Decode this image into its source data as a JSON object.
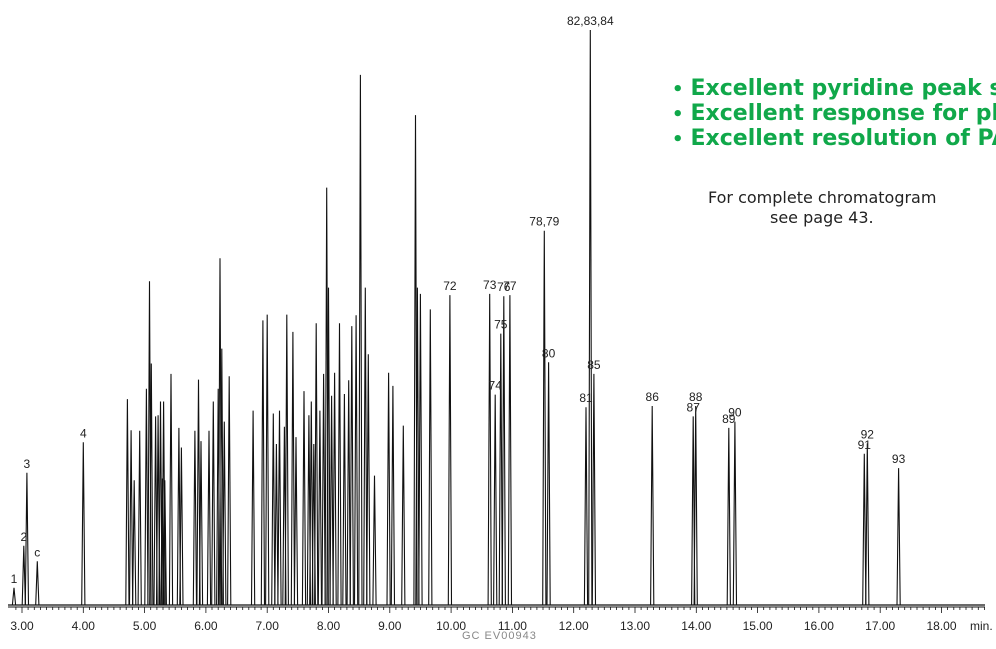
{
  "callouts": [
    "Excellent  pyridine peak shape",
    "Excellent response for phenols",
    "Excellent resolution of PAHs"
  ],
  "note": {
    "line1": "For complete chromatogram",
    "line2": "see page 43."
  },
  "figure_code": "GC  EV00943",
  "chart_data": {
    "type": "line",
    "xlabel": "min.",
    "xlim": [
      2.85,
      19.0
    ],
    "ylim": [
      0,
      100
    ],
    "x_ticks": [
      "3.00",
      "4.00",
      "5.00",
      "6.00",
      "7.00",
      "8.00",
      "9.00",
      "10.00",
      "11.00",
      "12.00",
      "13.00",
      "14.00",
      "15.00",
      "16.00",
      "17.00",
      "18.00"
    ],
    "labeled_peaks": [
      {
        "label": "1",
        "t": 2.87,
        "h": 3.0
      },
      {
        "label": "2",
        "t": 3.03,
        "h": 10.3
      },
      {
        "label": "3",
        "t": 3.08,
        "h": 23.0
      },
      {
        "label": "c",
        "t": 3.25,
        "h": 7.6
      },
      {
        "label": "4",
        "t": 4.0,
        "h": 28.3
      },
      {
        "label": "72",
        "t": 9.98,
        "h": 53.9
      },
      {
        "label": "73",
        "t": 10.63,
        "h": 54.1
      },
      {
        "label": "74",
        "t": 10.72,
        "h": 36.6
      },
      {
        "label": "75",
        "t": 10.81,
        "h": 47.2
      },
      {
        "label": "76",
        "t": 10.86,
        "h": 53.7
      },
      {
        "label": "77",
        "t": 10.96,
        "h": 53.9
      },
      {
        "label": "78,79",
        "t": 11.52,
        "h": 65.1
      },
      {
        "label": "80",
        "t": 11.59,
        "h": 42.2
      },
      {
        "label": "81",
        "t": 12.2,
        "h": 34.4
      },
      {
        "label": "82,83,84",
        "t": 12.27,
        "h": 100.0
      },
      {
        "label": "85",
        "t": 12.33,
        "h": 40.2
      },
      {
        "label": "86",
        "t": 13.28,
        "h": 34.6
      },
      {
        "label": "87",
        "t": 13.95,
        "h": 32.8
      },
      {
        "label": "88",
        "t": 13.99,
        "h": 34.6
      },
      {
        "label": "89",
        "t": 14.53,
        "h": 30.8
      },
      {
        "label": "90",
        "t": 14.63,
        "h": 31.9
      },
      {
        "label": "91",
        "t": 16.74,
        "h": 26.3
      },
      {
        "label": "92",
        "t": 16.79,
        "h": 28.1
      },
      {
        "label": "93",
        "t": 17.3,
        "h": 23.8
      }
    ],
    "unlabeled_peaks": [
      {
        "t": 4.72,
        "h": 35.8
      },
      {
        "t": 4.78,
        "h": 30.4
      },
      {
        "t": 4.83,
        "h": 21.7
      },
      {
        "t": 4.92,
        "h": 30.3
      },
      {
        "t": 5.03,
        "h": 37.6
      },
      {
        "t": 5.08,
        "h": 56.3
      },
      {
        "t": 5.11,
        "h": 42.0
      },
      {
        "t": 5.18,
        "h": 32.8
      },
      {
        "t": 5.22,
        "h": 33.0
      },
      {
        "t": 5.26,
        "h": 35.4
      },
      {
        "t": 5.29,
        "h": 22.0
      },
      {
        "t": 5.31,
        "h": 35.4
      },
      {
        "t": 5.33,
        "h": 21.7
      },
      {
        "t": 5.43,
        "h": 40.2
      },
      {
        "t": 5.56,
        "h": 30.8
      },
      {
        "t": 5.6,
        "h": 27.4
      },
      {
        "t": 5.82,
        "h": 30.3
      },
      {
        "t": 5.88,
        "h": 39.2
      },
      {
        "t": 5.92,
        "h": 28.5
      },
      {
        "t": 6.05,
        "h": 30.3
      },
      {
        "t": 6.12,
        "h": 35.4
      },
      {
        "t": 6.2,
        "h": 37.6
      },
      {
        "t": 6.23,
        "h": 60.3
      },
      {
        "t": 6.26,
        "h": 44.6
      },
      {
        "t": 6.3,
        "h": 31.9
      },
      {
        "t": 6.38,
        "h": 39.8
      },
      {
        "t": 6.77,
        "h": 33.8
      },
      {
        "t": 6.93,
        "h": 49.5
      },
      {
        "t": 7.0,
        "h": 50.5
      },
      {
        "t": 7.1,
        "h": 33.3
      },
      {
        "t": 7.15,
        "h": 28.0
      },
      {
        "t": 7.2,
        "h": 33.8
      },
      {
        "t": 7.28,
        "h": 31.0
      },
      {
        "t": 7.32,
        "h": 50.5
      },
      {
        "t": 7.42,
        "h": 47.5
      },
      {
        "t": 7.47,
        "h": 29.2
      },
      {
        "t": 7.6,
        "h": 37.2
      },
      {
        "t": 7.68,
        "h": 33.0
      },
      {
        "t": 7.72,
        "h": 35.4
      },
      {
        "t": 7.76,
        "h": 28.0
      },
      {
        "t": 7.8,
        "h": 49.0
      },
      {
        "t": 7.86,
        "h": 33.8
      },
      {
        "t": 7.92,
        "h": 40.2
      },
      {
        "t": 7.97,
        "h": 72.6
      },
      {
        "t": 8.0,
        "h": 55.2
      },
      {
        "t": 8.05,
        "h": 36.4
      },
      {
        "t": 8.1,
        "h": 40.4
      },
      {
        "t": 8.18,
        "h": 49.0
      },
      {
        "t": 8.26,
        "h": 36.7
      },
      {
        "t": 8.33,
        "h": 39.1
      },
      {
        "t": 8.38,
        "h": 48.5
      },
      {
        "t": 8.45,
        "h": 50.4
      },
      {
        "t": 8.52,
        "h": 92.2
      },
      {
        "t": 8.6,
        "h": 55.2
      },
      {
        "t": 8.65,
        "h": 43.6
      },
      {
        "t": 8.75,
        "h": 22.5
      },
      {
        "t": 8.98,
        "h": 40.4
      },
      {
        "t": 9.05,
        "h": 38.1
      },
      {
        "t": 9.22,
        "h": 31.2
      },
      {
        "t": 9.42,
        "h": 85.2
      },
      {
        "t": 9.45,
        "h": 55.2
      },
      {
        "t": 9.5,
        "h": 54.1
      },
      {
        "t": 9.66,
        "h": 51.4
      }
    ]
  }
}
